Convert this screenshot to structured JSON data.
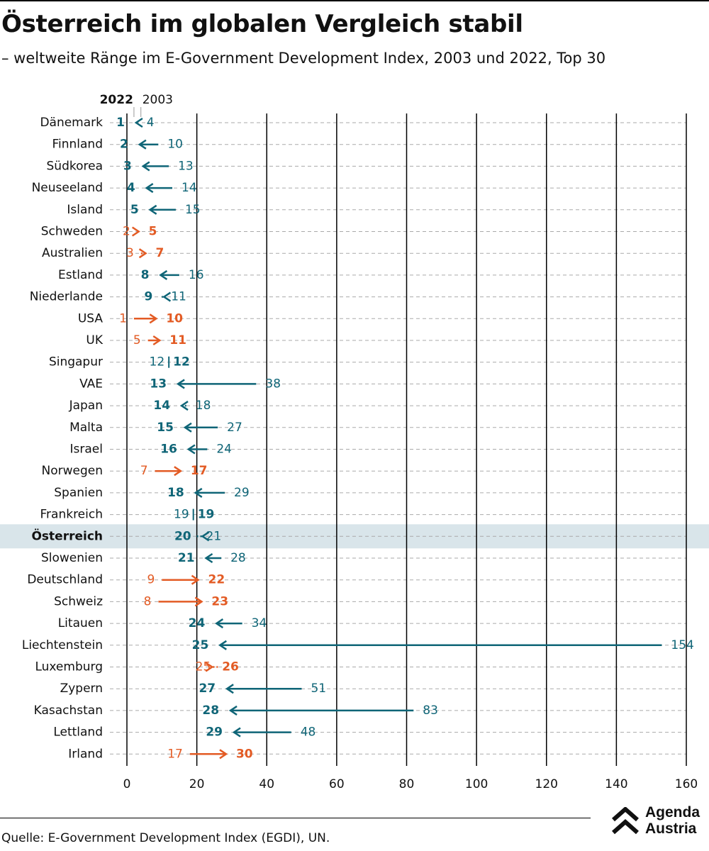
{
  "title": "Österreich im globalen Vergleich stabil",
  "subtitle": "– weltweite Ränge im E-Government Development Index, 2003 und 2022, Top 30",
  "source": "Quelle: E-Government Development Index (EGDI), UN.",
  "logo": {
    "line1": "Agenda",
    "line2": "Austria"
  },
  "colors": {
    "improved": "#0f6577",
    "worsened": "#e35b24",
    "highlight_row": "#d9e5ea",
    "grid": "#000000",
    "row_line": "#aaaaaa"
  },
  "chart_data": {
    "type": "dumbbell-arrow",
    "legend": {
      "label_2022": "2022",
      "label_2003": "2003"
    },
    "xlim": [
      0,
      160
    ],
    "xticks": [
      0,
      20,
      40,
      60,
      80,
      100,
      120,
      140,
      160
    ],
    "highlight": "Österreich",
    "rows": [
      {
        "country": "Dänemark",
        "rank_2003": 4,
        "rank_2022": 1
      },
      {
        "country": "Finnland",
        "rank_2003": 10,
        "rank_2022": 2
      },
      {
        "country": "Südkorea",
        "rank_2003": 13,
        "rank_2022": 3
      },
      {
        "country": "Neuseeland",
        "rank_2003": 14,
        "rank_2022": 4
      },
      {
        "country": "Island",
        "rank_2003": 15,
        "rank_2022": 5
      },
      {
        "country": "Schweden",
        "rank_2003": 2,
        "rank_2022": 5
      },
      {
        "country": "Australien",
        "rank_2003": 3,
        "rank_2022": 7
      },
      {
        "country": "Estland",
        "rank_2003": 16,
        "rank_2022": 8
      },
      {
        "country": "Niederlande",
        "rank_2003": 11,
        "rank_2022": 9
      },
      {
        "country": "USA",
        "rank_2003": 1,
        "rank_2022": 10
      },
      {
        "country": "UK",
        "rank_2003": 5,
        "rank_2022": 11
      },
      {
        "country": "Singapur",
        "rank_2003": 12,
        "rank_2022": 12
      },
      {
        "country": "VAE",
        "rank_2003": 38,
        "rank_2022": 13
      },
      {
        "country": "Japan",
        "rank_2003": 18,
        "rank_2022": 14
      },
      {
        "country": "Malta",
        "rank_2003": 27,
        "rank_2022": 15
      },
      {
        "country": "Israel",
        "rank_2003": 24,
        "rank_2022": 16
      },
      {
        "country": "Norwegen",
        "rank_2003": 7,
        "rank_2022": 17
      },
      {
        "country": "Spanien",
        "rank_2003": 29,
        "rank_2022": 18
      },
      {
        "country": "Frankreich",
        "rank_2003": 19,
        "rank_2022": 19
      },
      {
        "country": "Österreich",
        "rank_2003": 21,
        "rank_2022": 20
      },
      {
        "country": "Slowenien",
        "rank_2003": 28,
        "rank_2022": 21
      },
      {
        "country": "Deutschland",
        "rank_2003": 9,
        "rank_2022": 22
      },
      {
        "country": "Schweiz",
        "rank_2003": 8,
        "rank_2022": 23
      },
      {
        "country": "Litauen",
        "rank_2003": 34,
        "rank_2022": 24
      },
      {
        "country": "Liechtenstein",
        "rank_2003": 154,
        "rank_2022": 25
      },
      {
        "country": "Luxemburg",
        "rank_2003": 25,
        "rank_2022": 26
      },
      {
        "country": "Zypern",
        "rank_2003": 51,
        "rank_2022": 27
      },
      {
        "country": "Kasachstan",
        "rank_2003": 83,
        "rank_2022": 28
      },
      {
        "country": "Lettland",
        "rank_2003": 48,
        "rank_2022": 29
      },
      {
        "country": "Irland",
        "rank_2003": 17,
        "rank_2022": 30
      }
    ]
  }
}
